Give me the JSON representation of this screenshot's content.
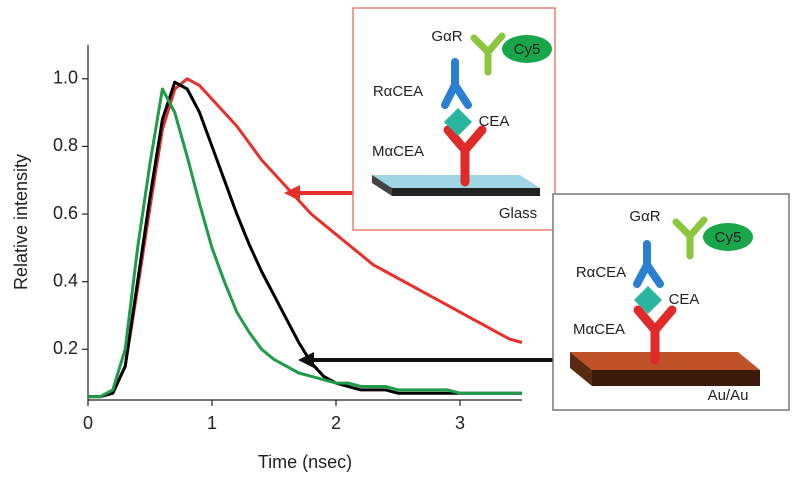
{
  "chart_data": {
    "type": "line",
    "xlabel": "Time (nsec)",
    "ylabel": "Relative intensity",
    "x": [
      0,
      0.1,
      0.2,
      0.3,
      0.4,
      0.5,
      0.6,
      0.7,
      0.8,
      0.9,
      1.0,
      1.1,
      1.2,
      1.3,
      1.4,
      1.5,
      1.6,
      1.7,
      1.8,
      1.9,
      2.0,
      2.1,
      2.2,
      2.3,
      2.4,
      2.5,
      2.6,
      2.7,
      2.8,
      2.9,
      3.0,
      3.1,
      3.2,
      3.3,
      3.4,
      3.5
    ],
    "series": [
      {
        "color": "#e8302a",
        "values": [
          0.06,
          0.06,
          0.07,
          0.15,
          0.38,
          0.62,
          0.85,
          0.97,
          1.0,
          0.98,
          0.94,
          0.9,
          0.86,
          0.81,
          0.76,
          0.72,
          0.68,
          0.64,
          0.6,
          0.57,
          0.54,
          0.51,
          0.48,
          0.45,
          0.43,
          0.41,
          0.39,
          0.37,
          0.35,
          0.33,
          0.31,
          0.29,
          0.27,
          0.25,
          0.23,
          0.22
        ]
      },
      {
        "color": "#000000",
        "values": [
          0.06,
          0.06,
          0.07,
          0.15,
          0.4,
          0.65,
          0.88,
          0.99,
          0.97,
          0.9,
          0.8,
          0.7,
          0.6,
          0.51,
          0.43,
          0.36,
          0.29,
          0.22,
          0.16,
          0.12,
          0.1,
          0.09,
          0.08,
          0.08,
          0.08,
          0.07,
          0.07,
          0.07,
          0.07,
          0.07,
          0.07,
          0.07,
          0.07,
          0.07,
          0.07,
          0.07
        ]
      },
      {
        "color": "#1e9c48",
        "values": [
          0.06,
          0.06,
          0.08,
          0.2,
          0.5,
          0.75,
          0.97,
          0.9,
          0.77,
          0.63,
          0.5,
          0.4,
          0.31,
          0.25,
          0.2,
          0.17,
          0.15,
          0.13,
          0.12,
          0.11,
          0.1,
          0.1,
          0.09,
          0.09,
          0.09,
          0.08,
          0.08,
          0.08,
          0.08,
          0.08,
          0.07,
          0.07,
          0.07,
          0.07,
          0.07,
          0.07
        ]
      }
    ],
    "xlim": [
      0,
      3.5
    ],
    "xticks": [
      0,
      1,
      2,
      3
    ],
    "ylim": [
      0.05,
      1.1
    ],
    "yticks": [
      0.2,
      0.4,
      0.6,
      0.8,
      {
        "value": 1,
        "label": "1.0"
      }
    ],
    "insets": [
      {
        "labels": [
          "GαR",
          "Cy5",
          "RαCEA",
          "CEA",
          "MαCEA",
          "Glass"
        ]
      },
      {
        "labels": [
          "GαR",
          "Cy5",
          "RαCEA",
          "CEA",
          "MαCEA",
          "Au/Au"
        ]
      }
    ]
  }
}
